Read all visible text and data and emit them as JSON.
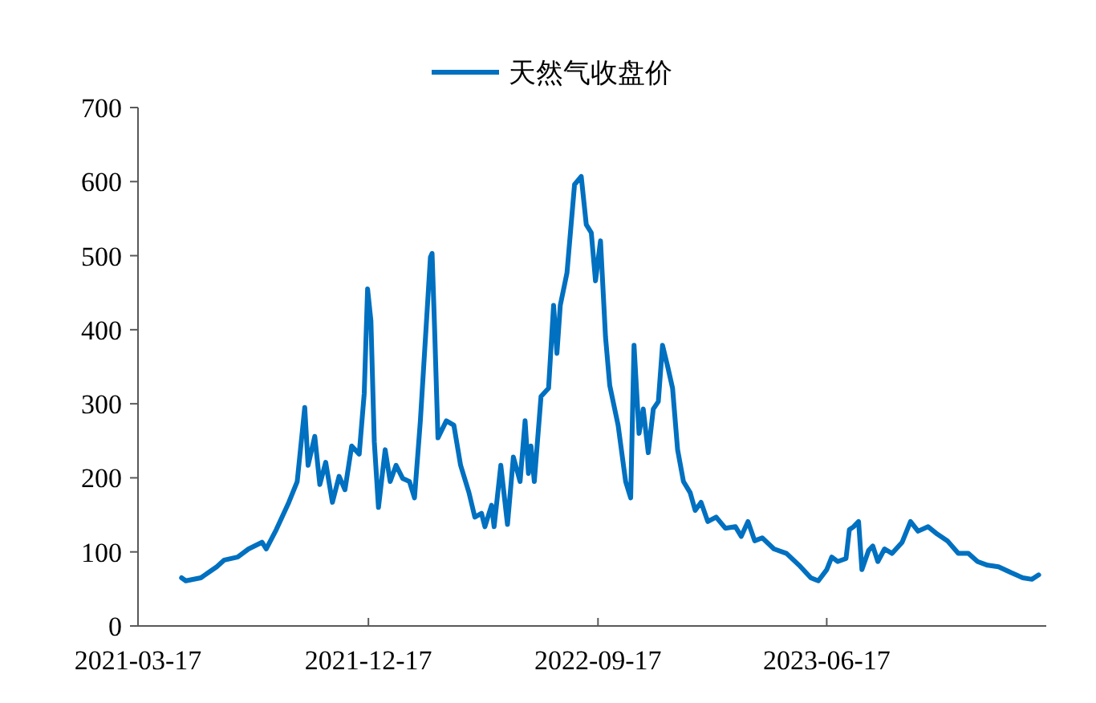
{
  "chart_data": {
    "type": "line",
    "x": [
      "2021-05-08",
      "2021-05-13",
      "2021-05-31",
      "2021-06-19",
      "2021-06-28",
      "2021-07-14",
      "2021-07-27",
      "2021-08-12",
      "2021-08-17",
      "2021-08-29",
      "2021-09-13",
      "2021-09-23",
      "2021-10-02",
      "2021-10-06",
      "2021-10-14",
      "2021-10-20",
      "2021-10-27",
      "2021-11-04",
      "2021-11-12",
      "2021-11-19",
      "2021-11-27",
      "2021-12-06",
      "2021-12-12",
      "2021-12-16",
      "2021-12-20",
      "2021-12-24",
      "2021-12-29",
      "2022-01-06",
      "2022-01-12",
      "2022-01-19",
      "2022-01-27",
      "2022-02-04",
      "2022-02-10",
      "2022-02-17",
      "2022-03-01",
      "2022-03-03",
      "2022-03-06",
      "2022-03-10",
      "2022-03-20",
      "2022-03-29",
      "2022-04-06",
      "2022-04-16",
      "2022-04-23",
      "2022-05-01",
      "2022-05-05",
      "2022-05-13",
      "2022-05-16",
      "2022-05-24",
      "2022-06-01",
      "2022-06-08",
      "2022-06-16",
      "2022-06-22",
      "2022-06-26",
      "2022-06-29",
      "2022-07-03",
      "2022-07-11",
      "2022-07-20",
      "2022-07-26",
      "2022-07-30",
      "2022-08-03",
      "2022-08-11",
      "2022-08-20",
      "2022-08-28",
      "2022-09-03",
      "2022-09-09",
      "2022-09-14",
      "2022-09-20",
      "2022-09-26",
      "2022-10-01",
      "2022-10-11",
      "2022-10-20",
      "2022-10-26",
      "2022-10-30",
      "2022-11-05",
      "2022-11-10",
      "2022-11-16",
      "2022-11-22",
      "2022-11-28",
      "2022-12-03",
      "2022-12-09",
      "2022-12-15",
      "2022-12-21",
      "2022-12-28",
      "2023-01-05",
      "2023-01-11",
      "2023-01-18",
      "2023-01-26",
      "2023-02-05",
      "2023-02-16",
      "2023-02-28",
      "2023-03-07",
      "2023-03-15",
      "2023-03-23",
      "2023-04-01",
      "2023-04-15",
      "2023-04-30",
      "2023-05-15",
      "2023-05-29",
      "2023-06-07",
      "2023-06-17",
      "2023-06-23",
      "2023-06-30",
      "2023-07-10",
      "2023-07-14",
      "2023-07-19",
      "2023-07-25",
      "2023-07-29",
      "2023-08-06",
      "2023-08-11",
      "2023-08-17",
      "2023-08-25",
      "2023-09-03",
      "2023-09-15",
      "2023-09-25",
      "2023-10-04",
      "2023-10-16",
      "2023-10-27",
      "2023-11-08",
      "2023-11-21",
      "2023-12-03",
      "2023-12-14",
      "2023-12-26",
      "2024-01-08",
      "2024-01-23",
      "2024-02-06",
      "2024-02-17",
      "2024-02-25"
    ],
    "series": [
      {
        "name": "天然气收盘价",
        "color": "#0070c0",
        "values": [
          65,
          61,
          65,
          80,
          89,
          93,
          104,
          113,
          104,
          130,
          167,
          195,
          295,
          217,
          256,
          191,
          221,
          167,
          202,
          184,
          243,
          232,
          314,
          455,
          412,
          249,
          160,
          238,
          195,
          217,
          199,
          195,
          173,
          277,
          498,
          503,
          401,
          254,
          277,
          271,
          217,
          180,
          147,
          152,
          134,
          163,
          134,
          217,
          137,
          228,
          195,
          277,
          206,
          243,
          195,
          310,
          321,
          433,
          368,
          433,
          477,
          596,
          607,
          542,
          531,
          466,
          520,
          390,
          325,
          271,
          195,
          173,
          379,
          260,
          293,
          234,
          293,
          303,
          379,
          351,
          321,
          238,
          195,
          180,
          156,
          167,
          141,
          147,
          132,
          134,
          121,
          141,
          115,
          119,
          104,
          98,
          82,
          65,
          61,
          76,
          93,
          87,
          91,
          130,
          134,
          141,
          76,
          102,
          108,
          87,
          104,
          98,
          113,
          141,
          128,
          134,
          124,
          115,
          98,
          98,
          87,
          82,
          80,
          72,
          65,
          63,
          69
        ]
      }
    ],
    "xlim": [
      "2021-03-17",
      "2024-03-05"
    ],
    "xticks": [
      "2021-03-17",
      "2021-12-17",
      "2022-09-17",
      "2023-06-17"
    ],
    "ylim": [
      0,
      700
    ],
    "yticks": [
      0,
      100,
      200,
      300,
      400,
      500,
      600,
      700
    ],
    "legend": "top"
  }
}
